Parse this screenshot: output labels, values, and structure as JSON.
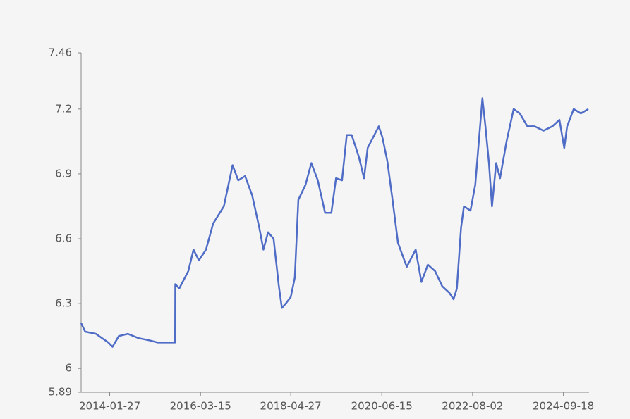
{
  "chart_data": {
    "type": "line",
    "x": [
      "2013-05-27",
      "2013-07-01",
      "2013-10-01",
      "2014-01-15",
      "2014-02-20",
      "2014-04-15",
      "2014-07-01",
      "2014-10-01",
      "2015-01-01",
      "2015-03-15",
      "2015-06-01",
      "2015-08-10",
      "2015-08-12",
      "2015-09-15",
      "2015-12-01",
      "2016-01-15",
      "2016-03-01",
      "2016-05-01",
      "2016-07-01",
      "2016-10-01",
      "2016-12-15",
      "2017-02-01",
      "2017-04-01",
      "2017-06-01",
      "2017-08-01",
      "2017-09-05",
      "2017-10-15",
      "2017-12-01",
      "2018-01-15",
      "2018-02-10",
      "2018-03-15",
      "2018-04-27",
      "2018-06-01",
      "2018-07-01",
      "2018-09-01",
      "2018-10-20",
      "2018-12-15",
      "2019-02-15",
      "2019-04-10",
      "2019-05-20",
      "2019-07-10",
      "2019-08-20",
      "2019-10-01",
      "2019-12-01",
      "2020-01-15",
      "2020-02-15",
      "2020-05-20",
      "2020-06-20",
      "2020-08-01",
      "2020-09-10",
      "2020-11-01",
      "2021-01-15",
      "2021-04-01",
      "2021-05-20",
      "2021-07-15",
      "2021-09-15",
      "2021-11-15",
      "2022-01-15",
      "2022-02-20",
      "2022-03-20",
      "2022-04-25",
      "2022-05-20",
      "2022-07-15",
      "2022-08-25",
      "2022-10-25",
      "2022-11-20",
      "2022-12-20",
      "2023-01-15",
      "2023-02-20",
      "2023-03-25",
      "2023-05-20",
      "2023-07-20",
      "2023-09-10",
      "2023-11-15",
      "2024-01-15",
      "2024-04-01",
      "2024-06-15",
      "2024-08-15",
      "2024-09-25",
      "2024-10-20",
      "2024-12-15",
      "2025-02-15",
      "2025-04-20"
    ],
    "values": [
      6.21,
      6.17,
      6.16,
      6.12,
      6.1,
      6.15,
      6.16,
      6.14,
      6.13,
      6.12,
      6.12,
      6.12,
      6.39,
      6.37,
      6.45,
      6.55,
      6.5,
      6.55,
      6.67,
      6.75,
      6.94,
      6.87,
      6.89,
      6.8,
      6.65,
      6.55,
      6.63,
      6.6,
      6.38,
      6.28,
      6.3,
      6.33,
      6.42,
      6.78,
      6.85,
      6.95,
      6.87,
      6.72,
      6.72,
      6.88,
      6.87,
      7.08,
      7.08,
      6.98,
      6.88,
      7.02,
      7.12,
      7.07,
      6.96,
      6.8,
      6.58,
      6.47,
      6.55,
      6.4,
      6.48,
      6.45,
      6.38,
      6.35,
      6.32,
      6.37,
      6.65,
      6.75,
      6.73,
      6.85,
      7.25,
      7.12,
      6.95,
      6.75,
      6.95,
      6.88,
      7.05,
      7.2,
      7.18,
      7.12,
      7.12,
      7.1,
      7.12,
      7.15,
      7.02,
      7.12,
      7.2,
      7.18,
      7.2
    ],
    "color": "#4f6cc6",
    "xlim": [
      "2013-05-27",
      "2025-04-26"
    ],
    "xticks": [
      "2014-01-27",
      "2016-03-15",
      "2018-04-27",
      "2020-06-15",
      "2022-08-02",
      "2024-09-18"
    ],
    "ylim": [
      5.89,
      7.46
    ],
    "yticks": [
      5.89,
      6,
      6.3,
      6.6,
      6.9,
      7.2,
      7.46
    ]
  }
}
